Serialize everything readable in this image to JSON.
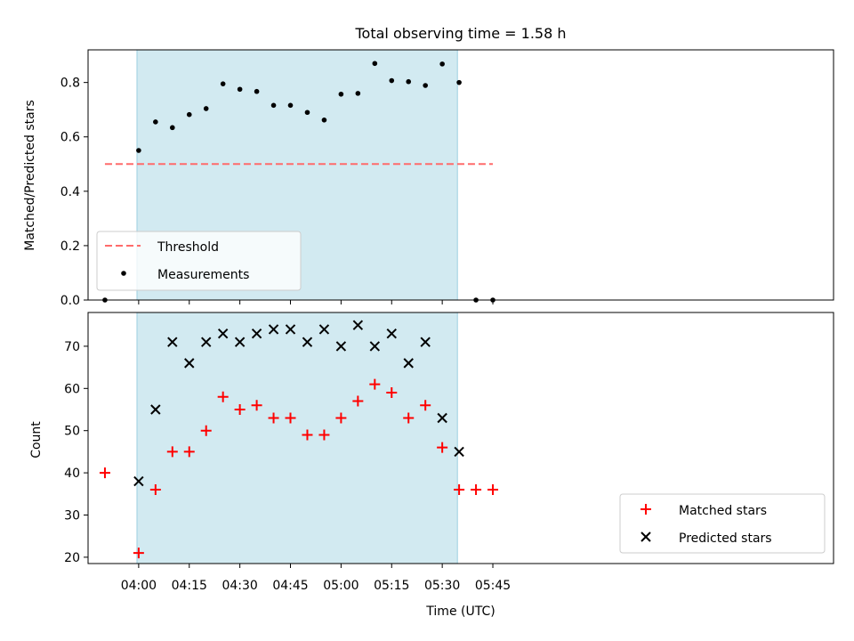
{
  "chart_data": [
    {
      "type": "scatter",
      "title": "Total observing time = 1.58 h",
      "xlabel": "",
      "ylabel": "Matched/Predicted stars",
      "ylim": [
        0,
        0.92
      ],
      "yticks": [
        "0.0",
        "0.2",
        "0.4",
        "0.6",
        "0.8"
      ],
      "xlim_minutes": [
        -15,
        206
      ],
      "xticks": [
        "04:00",
        "04:15",
        "04:30",
        "04:45",
        "05:00",
        "05:15",
        "05:30",
        "05:45"
      ],
      "shaded_span": {
        "start": "03:59:30",
        "end": "05:34:30",
        "color": "#add8e6"
      },
      "threshold": {
        "name": "Threshold",
        "value": 0.5,
        "x_start": "03:50",
        "x_end": "05:45",
        "color": "#ff6b6b",
        "style": "dashed"
      },
      "series": [
        {
          "name": "Measurements",
          "color": "#000000",
          "marker": "dot",
          "x": [
            "03:50",
            "04:00",
            "04:05",
            "04:10",
            "04:15",
            "04:20",
            "04:25",
            "04:30",
            "04:35",
            "04:40",
            "04:45",
            "04:50",
            "04:55",
            "05:00",
            "05:05",
            "05:10",
            "05:15",
            "05:20",
            "05:25",
            "05:30",
            "05:35",
            "05:40",
            "05:45"
          ],
          "y": [
            0.0,
            0.55,
            0.655,
            0.634,
            0.682,
            0.704,
            0.795,
            0.775,
            0.767,
            0.716,
            0.716,
            0.69,
            0.662,
            0.757,
            0.76,
            0.87,
            0.807,
            0.803,
            0.789,
            0.868,
            0.8,
            0.0,
            0.0
          ]
        }
      ],
      "legend": {
        "position": "lower-left",
        "entries": [
          "Threshold",
          "Measurements"
        ]
      }
    },
    {
      "type": "scatter",
      "xlabel": "Time (UTC)",
      "ylabel": "Count",
      "ylim": [
        18.5,
        78
      ],
      "yticks": [
        "20",
        "30",
        "40",
        "50",
        "60",
        "70"
      ],
      "xticks": [
        "04:00",
        "04:15",
        "04:30",
        "04:45",
        "05:00",
        "05:15",
        "05:30",
        "05:45"
      ],
      "series": [
        {
          "name": "Matched stars",
          "color": "#ff0000",
          "marker": "plus",
          "x": [
            "03:50",
            "04:00",
            "04:05",
            "04:10",
            "04:15",
            "04:20",
            "04:25",
            "04:30",
            "04:35",
            "04:40",
            "04:45",
            "04:50",
            "04:55",
            "05:00",
            "05:05",
            "05:10",
            "05:15",
            "05:20",
            "05:25",
            "05:30",
            "05:35",
            "05:40",
            "05:45"
          ],
          "y": [
            40,
            21,
            36,
            45,
            45,
            50,
            58,
            55,
            56,
            53,
            53,
            49,
            49,
            53,
            57,
            61,
            59,
            53,
            56,
            46,
            36,
            36,
            36
          ]
        },
        {
          "name": "Predicted stars",
          "color": "#000000",
          "marker": "x",
          "x": [
            "04:00",
            "04:05",
            "04:10",
            "04:15",
            "04:20",
            "04:25",
            "04:30",
            "04:35",
            "04:40",
            "04:45",
            "04:50",
            "04:55",
            "05:00",
            "05:05",
            "05:10",
            "05:15",
            "05:20",
            "05:25",
            "05:30",
            "05:35"
          ],
          "y": [
            38,
            55,
            71,
            66,
            71,
            73,
            71,
            73,
            74,
            74,
            71,
            74,
            70,
            75,
            70,
            73,
            66,
            71,
            53,
            45
          ]
        }
      ],
      "legend": {
        "position": "lower-right",
        "entries": [
          "Matched stars",
          "Predicted stars"
        ]
      }
    }
  ]
}
